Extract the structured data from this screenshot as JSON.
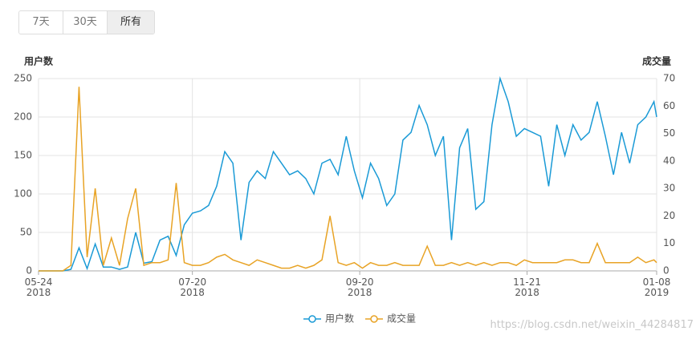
{
  "controls": {
    "buttons": [
      "7天",
      "30天",
      "所有"
    ],
    "selected_index": 2
  },
  "watermark": "https://blog.csdn.net/weixin_44284817",
  "chart_data": {
    "type": "line",
    "y_axis_label": "用户数",
    "y2_axis_label": "成交量",
    "x": [
      "2018-05-24",
      "2018-05-27",
      "2018-05-30",
      "2018-06-02",
      "2018-06-05",
      "2018-06-08",
      "2018-06-11",
      "2018-06-14",
      "2018-06-17",
      "2018-06-20",
      "2018-06-23",
      "2018-06-26",
      "2018-06-29",
      "2018-07-02",
      "2018-07-05",
      "2018-07-08",
      "2018-07-11",
      "2018-07-14",
      "2018-07-17",
      "2018-07-20",
      "2018-07-23",
      "2018-07-26",
      "2018-07-29",
      "2018-08-01",
      "2018-08-04",
      "2018-08-07",
      "2018-08-10",
      "2018-08-13",
      "2018-08-16",
      "2018-08-19",
      "2018-08-22",
      "2018-08-25",
      "2018-08-28",
      "2018-08-31",
      "2018-09-03",
      "2018-09-06",
      "2018-09-09",
      "2018-09-12",
      "2018-09-15",
      "2018-09-18",
      "2018-09-21",
      "2018-09-24",
      "2018-09-27",
      "2018-09-30",
      "2018-10-03",
      "2018-10-06",
      "2018-10-09",
      "2018-10-12",
      "2018-10-15",
      "2018-10-18",
      "2018-10-21",
      "2018-10-24",
      "2018-10-27",
      "2018-10-30",
      "2018-11-02",
      "2018-11-05",
      "2018-11-08",
      "2018-11-11",
      "2018-11-14",
      "2018-11-17",
      "2018-11-20",
      "2018-11-23",
      "2018-11-26",
      "2018-11-29",
      "2018-12-02",
      "2018-12-05",
      "2018-12-08",
      "2018-12-11",
      "2018-12-14",
      "2018-12-17",
      "2018-12-20",
      "2018-12-23",
      "2018-12-26",
      "2018-12-29",
      "2019-01-01",
      "2019-01-04",
      "2019-01-07",
      "2019-01-08"
    ],
    "series": [
      {
        "name": "用户数",
        "color": "#1a9ad6",
        "axis": "y",
        "values": [
          0,
          0,
          0,
          0,
          2,
          30,
          3,
          35,
          5,
          5,
          2,
          5,
          50,
          10,
          12,
          40,
          45,
          20,
          60,
          75,
          78,
          85,
          110,
          155,
          140,
          40,
          115,
          130,
          120,
          155,
          140,
          125,
          130,
          120,
          100,
          140,
          145,
          125,
          175,
          130,
          95,
          140,
          120,
          85,
          100,
          170,
          180,
          215,
          190,
          150,
          175,
          40,
          160,
          185,
          80,
          90,
          190,
          250,
          220,
          175,
          185,
          180,
          175,
          110,
          190,
          150,
          190,
          170,
          180,
          220,
          175,
          125,
          180,
          140,
          190,
          200,
          220,
          200
        ]
      },
      {
        "name": "成交量",
        "color": "#e8a325",
        "axis": "y2",
        "values": [
          0,
          0,
          0,
          0,
          2,
          67,
          5,
          30,
          2,
          12,
          2,
          19,
          30,
          2,
          3,
          3,
          4,
          32,
          3,
          2,
          2,
          3,
          5,
          6,
          4,
          3,
          2,
          4,
          3,
          2,
          1,
          1,
          2,
          1,
          2,
          4,
          20,
          3,
          2,
          3,
          1,
          3,
          2,
          2,
          3,
          2,
          2,
          2,
          9,
          2,
          2,
          3,
          2,
          3,
          2,
          3,
          2,
          3,
          3,
          2,
          4,
          3,
          3,
          3,
          3,
          4,
          4,
          3,
          3,
          10,
          3,
          3,
          3,
          3,
          5,
          3,
          4,
          3
        ]
      }
    ],
    "xlim": [
      "2018-05-24",
      "2019-01-08"
    ],
    "xticks": [
      {
        "value": "2018-05-24",
        "label": "05-24\n2018"
      },
      {
        "value": "2018-07-20",
        "label": "07-20\n2018"
      },
      {
        "value": "2018-09-20",
        "label": "09-20\n2018"
      },
      {
        "value": "2018-11-21",
        "label": "11-21\n2018"
      },
      {
        "value": "2019-01-08",
        "label": "01-08\n2019"
      }
    ],
    "ylim": [
      0,
      250
    ],
    "yticks": [
      0,
      50,
      100,
      150,
      200,
      250
    ],
    "y2lim": [
      0,
      70
    ],
    "y2ticks": [
      0,
      10,
      20,
      30,
      40,
      50,
      60,
      70
    ],
    "grid": true,
    "legend": "bottom"
  }
}
